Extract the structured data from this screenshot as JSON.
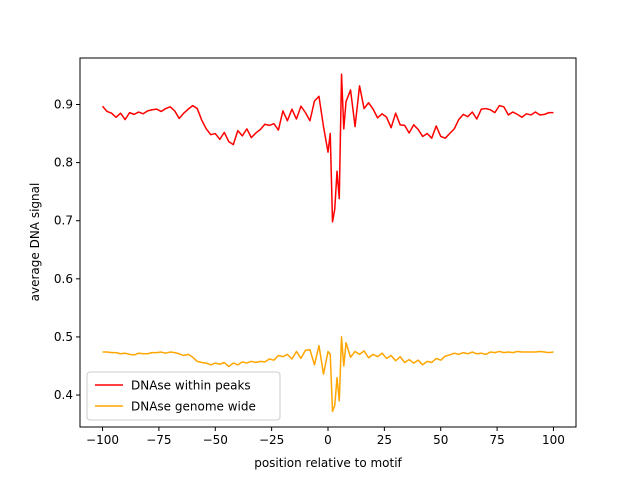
{
  "chart_data": {
    "type": "line",
    "title": "",
    "xlabel": "position relative to motif",
    "ylabel": "average DNA signal",
    "xlim": [
      -110,
      110
    ],
    "ylim": [
      0.345,
      0.98
    ],
    "xticks": [
      -100,
      -75,
      -50,
      -25,
      0,
      25,
      50,
      75,
      100
    ],
    "xtick_labels": [
      "−100",
      "−75",
      "−50",
      "−25",
      "0",
      "25",
      "50",
      "75",
      "100"
    ],
    "yticks": [
      0.4,
      0.5,
      0.6,
      0.7,
      0.8,
      0.9
    ],
    "ytick_labels": [
      "0.4",
      "0.5",
      "0.6",
      "0.7",
      "0.8",
      "0.9"
    ],
    "grid": false,
    "legend_position": "lower-left",
    "series": [
      {
        "name": "DNAse within peaks",
        "color": "#ff0000",
        "x": [
          -100,
          -98,
          -96,
          -94,
          -92,
          -90,
          -88,
          -86,
          -84,
          -82,
          -80,
          -78,
          -76,
          -74,
          -72,
          -70,
          -68,
          -66,
          -64,
          -62,
          -60,
          -58,
          -56,
          -54,
          -52,
          -50,
          -48,
          -46,
          -44,
          -42,
          -40,
          -38,
          -36,
          -34,
          -32,
          -30,
          -28,
          -26,
          -24,
          -22,
          -20,
          -18,
          -16,
          -14,
          -12,
          -10,
          -8,
          -6,
          -4,
          -2,
          0,
          1,
          2,
          3,
          4,
          5,
          6,
          7,
          8,
          10,
          12,
          14,
          16,
          18,
          20,
          22,
          24,
          26,
          28,
          30,
          32,
          34,
          36,
          38,
          40,
          42,
          44,
          46,
          48,
          50,
          52,
          54,
          56,
          58,
          60,
          62,
          64,
          66,
          68,
          70,
          72,
          74,
          76,
          78,
          80,
          82,
          84,
          86,
          88,
          90,
          92,
          94,
          96,
          98,
          100
        ],
        "y": [
          0.897,
          0.888,
          0.885,
          0.878,
          0.885,
          0.874,
          0.886,
          0.883,
          0.887,
          0.884,
          0.889,
          0.891,
          0.892,
          0.888,
          0.893,
          0.896,
          0.889,
          0.876,
          0.885,
          0.892,
          0.898,
          0.893,
          0.873,
          0.858,
          0.848,
          0.85,
          0.84,
          0.852,
          0.836,
          0.831,
          0.855,
          0.846,
          0.858,
          0.843,
          0.851,
          0.857,
          0.866,
          0.864,
          0.867,
          0.856,
          0.889,
          0.872,
          0.892,
          0.875,
          0.897,
          0.886,
          0.872,
          0.906,
          0.914,
          0.862,
          0.818,
          0.85,
          0.698,
          0.72,
          0.785,
          0.738,
          0.952,
          0.858,
          0.905,
          0.925,
          0.862,
          0.932,
          0.893,
          0.903,
          0.892,
          0.877,
          0.884,
          0.878,
          0.86,
          0.885,
          0.865,
          0.864,
          0.851,
          0.865,
          0.857,
          0.845,
          0.85,
          0.842,
          0.863,
          0.845,
          0.842,
          0.85,
          0.858,
          0.874,
          0.883,
          0.879,
          0.887,
          0.875,
          0.892,
          0.893,
          0.891,
          0.886,
          0.898,
          0.896,
          0.882,
          0.887,
          0.883,
          0.878,
          0.884,
          0.882,
          0.887,
          0.882,
          0.883,
          0.886,
          0.886
        ]
      },
      {
        "name": "DNAse genome wide",
        "color": "#ffa500",
        "x": [
          -100,
          -98,
          -96,
          -94,
          -92,
          -90,
          -88,
          -86,
          -84,
          -82,
          -80,
          -78,
          -76,
          -74,
          -72,
          -70,
          -68,
          -66,
          -64,
          -62,
          -60,
          -58,
          -56,
          -54,
          -52,
          -50,
          -48,
          -46,
          -44,
          -42,
          -40,
          -38,
          -36,
          -34,
          -32,
          -30,
          -28,
          -26,
          -24,
          -22,
          -20,
          -18,
          -16,
          -14,
          -12,
          -10,
          -8,
          -6,
          -4,
          -2,
          0,
          1,
          2,
          3,
          4,
          5,
          6,
          7,
          8,
          10,
          12,
          14,
          16,
          18,
          20,
          22,
          24,
          26,
          28,
          30,
          32,
          34,
          36,
          38,
          40,
          42,
          44,
          46,
          48,
          50,
          52,
          54,
          56,
          58,
          60,
          62,
          64,
          66,
          68,
          70,
          72,
          74,
          76,
          78,
          80,
          82,
          84,
          86,
          88,
          90,
          92,
          94,
          96,
          98,
          100
        ],
        "y": [
          0.474,
          0.474,
          0.473,
          0.473,
          0.471,
          0.472,
          0.47,
          0.469,
          0.472,
          0.471,
          0.471,
          0.473,
          0.473,
          0.474,
          0.472,
          0.474,
          0.473,
          0.471,
          0.468,
          0.47,
          0.465,
          0.458,
          0.456,
          0.455,
          0.452,
          0.455,
          0.453,
          0.456,
          0.449,
          0.455,
          0.452,
          0.457,
          0.455,
          0.458,
          0.456,
          0.458,
          0.457,
          0.462,
          0.46,
          0.468,
          0.466,
          0.47,
          0.462,
          0.475,
          0.463,
          0.477,
          0.478,
          0.452,
          0.485,
          0.436,
          0.475,
          0.47,
          0.372,
          0.382,
          0.43,
          0.39,
          0.5,
          0.45,
          0.49,
          0.465,
          0.475,
          0.47,
          0.476,
          0.464,
          0.47,
          0.466,
          0.472,
          0.463,
          0.468,
          0.459,
          0.466,
          0.456,
          0.461,
          0.455,
          0.46,
          0.452,
          0.458,
          0.456,
          0.463,
          0.46,
          0.467,
          0.469,
          0.472,
          0.47,
          0.473,
          0.471,
          0.474,
          0.471,
          0.472,
          0.47,
          0.474,
          0.473,
          0.475,
          0.473,
          0.474,
          0.473,
          0.475,
          0.474,
          0.474,
          0.474,
          0.474,
          0.475,
          0.474,
          0.473,
          0.474
        ]
      }
    ]
  }
}
